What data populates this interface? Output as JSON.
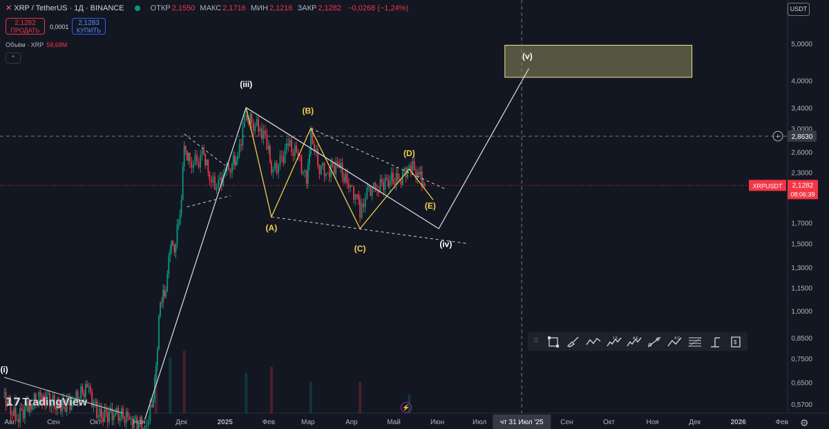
{
  "header": {
    "symbol": "XRP / TetherUS · 1Д · BINANCE",
    "open_label": "ОТКР",
    "open": "2,1550",
    "high_label": "МАКС",
    "high": "2,1716",
    "low_label": "МИН",
    "low": "2,1216",
    "close_label": "ЗАКР",
    "close": "2,1282",
    "change": "−0,0268 (−1,24%)"
  },
  "trade": {
    "sell_price": "2,1282",
    "sell_label": "ПРОДАТЬ",
    "spread": "0,0001",
    "buy_price": "2,1283",
    "buy_label": "КУПИТЬ"
  },
  "volume": {
    "label": "Объём · XRP",
    "value": "58,68M"
  },
  "currency": "USDT",
  "logo": "TradingView",
  "colors": {
    "bg": "#131722",
    "up": "#089981",
    "down": "#f23645",
    "wave_yellow": "#f5d14a",
    "target_box": "#f0e68c"
  },
  "toolbar_icons": [
    "rectangle-icon",
    "brush-icon",
    "path-icon",
    "elliott-impulse-icon",
    "elliott-correction-icon",
    "trend-line-icon",
    "abc-pattern-icon",
    "fib-icon",
    "measure-icon",
    "long-position-icon"
  ],
  "chart_data": {
    "type": "line",
    "symbol": "XRPUSDT",
    "y_scale": "log",
    "ylim": [
      0.54,
      6.5
    ],
    "y_ticks": [
      "5,0000",
      "4,0000",
      "3,4000",
      "3,0000",
      "2,6000",
      "2,3000",
      "1,7000",
      "1,5000",
      "1,3000",
      "1,1500",
      "1,0000",
      "0,8500",
      "0,7500",
      "0,6500",
      "0,5700"
    ],
    "y_tick_values": [
      5.0,
      4.0,
      3.4,
      3.0,
      2.6,
      2.3,
      1.7,
      1.5,
      1.3,
      1.15,
      1.0,
      0.85,
      0.75,
      0.65,
      0.57
    ],
    "x_ticks": [
      "Авг",
      "Сен",
      "Окт",
      "Ноя",
      "Дек",
      "2025",
      "Фев",
      "Мар",
      "Апр",
      "Май",
      "Июн",
      "Июл",
      "чт 31 Июл '25",
      "Сен",
      "Окт",
      "Ноя",
      "Дек",
      "2026",
      "Фев"
    ],
    "x_tick_dates": [
      "2024-08-01",
      "2024-09-01",
      "2024-10-01",
      "2024-11-01",
      "2024-12-01",
      "2025-01-01",
      "2025-02-01",
      "2025-03-01",
      "2025-04-01",
      "2025-05-01",
      "2025-06-01",
      "2025-07-01",
      "2025-07-31",
      "2025-09-01",
      "2025-10-01",
      "2025-11-01",
      "2025-12-01",
      "2026-01-01",
      "2026-02-01"
    ],
    "x_range": [
      "2024-07-25",
      "2026-02-05"
    ],
    "crosshair": {
      "date": "2025-07-31",
      "price": 2.863,
      "price_label": "2,8630"
    },
    "last_price": {
      "value": 2.1282,
      "label": "2,1282",
      "countdown": "08:06:39",
      "symbol_label": "XRPUSDT"
    },
    "close_series": [
      [
        "2024-07-27",
        0.61
      ],
      [
        "2024-08-05",
        0.52
      ],
      [
        "2024-08-15",
        0.57
      ],
      [
        "2024-08-25",
        0.6
      ],
      [
        "2024-09-05",
        0.56
      ],
      [
        "2024-09-15",
        0.58
      ],
      [
        "2024-09-25",
        0.63
      ],
      [
        "2024-10-03",
        0.53
      ],
      [
        "2024-10-15",
        0.54
      ],
      [
        "2024-10-25",
        0.52
      ],
      [
        "2024-11-05",
        0.5
      ],
      [
        "2024-11-10",
        0.56
      ],
      [
        "2024-11-13",
        0.72
      ],
      [
        "2024-11-16",
        1.05
      ],
      [
        "2024-11-20",
        1.12
      ],
      [
        "2024-11-23",
        1.45
      ],
      [
        "2024-11-27",
        1.5
      ],
      [
        "2024-12-01",
        1.95
      ],
      [
        "2024-12-03",
        2.7
      ],
      [
        "2024-12-07",
        2.45
      ],
      [
        "2024-12-12",
        2.45
      ],
      [
        "2024-12-17",
        2.58
      ],
      [
        "2024-12-21",
        2.2
      ],
      [
        "2024-12-26",
        2.1
      ],
      [
        "2025-01-01",
        2.3
      ],
      [
        "2025-01-06",
        2.42
      ],
      [
        "2025-01-10",
        2.55
      ],
      [
        "2025-01-16",
        3.25
      ],
      [
        "2025-01-20",
        3.1
      ],
      [
        "2025-01-26",
        3.0
      ],
      [
        "2025-02-01",
        2.7
      ],
      [
        "2025-02-03",
        2.3
      ],
      [
        "2025-02-08",
        2.4
      ],
      [
        "2025-02-15",
        2.7
      ],
      [
        "2025-02-22",
        2.55
      ],
      [
        "2025-02-28",
        2.15
      ],
      [
        "2025-03-03",
        2.95
      ],
      [
        "2025-03-08",
        2.4
      ],
      [
        "2025-03-15",
        2.3
      ],
      [
        "2025-03-22",
        2.43
      ],
      [
        "2025-03-30",
        2.1
      ],
      [
        "2025-04-05",
        2.0
      ],
      [
        "2025-04-07",
        1.75
      ],
      [
        "2025-04-12",
        2.1
      ],
      [
        "2025-04-18",
        2.08
      ],
      [
        "2025-04-26",
        2.2
      ],
      [
        "2025-05-05",
        2.2
      ],
      [
        "2025-05-12",
        2.4
      ],
      [
        "2025-05-18",
        2.3
      ],
      [
        "2025-05-22",
        2.15
      ],
      [
        "2025-05-23",
        2.1282
      ]
    ],
    "volume_series": [
      [
        "2024-08-05",
        0.3
      ],
      [
        "2024-09-01",
        0.15
      ],
      [
        "2024-10-03",
        0.2
      ],
      [
        "2024-11-13",
        0.7
      ],
      [
        "2024-11-23",
        0.9
      ],
      [
        "2024-12-03",
        1.0
      ],
      [
        "2025-01-16",
        0.65
      ],
      [
        "2025-02-03",
        0.75
      ],
      [
        "2025-03-03",
        0.5
      ],
      [
        "2025-04-07",
        0.5
      ],
      [
        "2025-05-12",
        0.3
      ]
    ],
    "wave_labels": [
      {
        "text": "(i)",
        "date": "2024-07-28",
        "price": 0.69,
        "color": "white"
      },
      {
        "text": "(iii)",
        "date": "2025-01-16",
        "price": 3.85,
        "color": "white"
      },
      {
        "text": "(iv)",
        "date": "2025-06-07",
        "price": 1.47,
        "color": "white"
      },
      {
        "text": "(v)",
        "date": "2025-08-04",
        "price": 4.55,
        "color": "white"
      },
      {
        "text": "(A)",
        "date": "2025-02-03",
        "price": 1.62,
        "color": "yellow"
      },
      {
        "text": "(B)",
        "date": "2025-03-01",
        "price": 3.28,
        "color": "yellow"
      },
      {
        "text": "(C)",
        "date": "2025-04-07",
        "price": 1.43,
        "color": "yellow"
      },
      {
        "text": "(D)",
        "date": "2025-05-12",
        "price": 2.54,
        "color": "yellow"
      },
      {
        "text": "(E)",
        "date": "2025-05-27",
        "price": 1.85,
        "color": "yellow"
      }
    ],
    "wave_path_white": [
      [
        "2024-07-28",
        0.66
      ],
      [
        "2024-10-20",
        0.54
      ],
      [
        "2024-11-05",
        0.52
      ],
      [
        "2025-01-16",
        3.4
      ],
      [
        "2025-06-02",
        1.64
      ],
      [
        "2025-08-05",
        4.3
      ]
    ],
    "wave_path_yellow": [
      [
        "2025-01-16",
        3.4
      ],
      [
        "2025-02-03",
        1.76
      ],
      [
        "2025-03-03",
        3.0
      ],
      [
        "2025-04-07",
        1.64
      ],
      [
        "2025-05-12",
        2.35
      ],
      [
        "2025-05-29",
        1.95
      ]
    ],
    "target_zone": {
      "date_from": "2025-07-19",
      "date_to": "2025-11-29",
      "price_low": 4.08,
      "price_high": 4.95
    }
  }
}
